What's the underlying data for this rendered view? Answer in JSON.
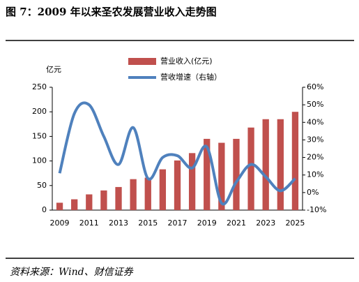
{
  "title": "图 7：2009 年以来圣农发展营业收入走势图",
  "source": "资料来源：Wind、财信证券",
  "chart_data": {
    "type": "bar-line",
    "y_label": "亿元",
    "categories": [
      "2009",
      null,
      "2011",
      null,
      "2013",
      null,
      "2015",
      null,
      "2017",
      null,
      "2019",
      null,
      "2021",
      null,
      "2023",
      null,
      "2025"
    ],
    "series": [
      {
        "name": "营业收入(亿元)",
        "type": "bar",
        "color": "#c0504d",
        "values": [
          15,
          22,
          32,
          40,
          47,
          63,
          66,
          83,
          101,
          116,
          145,
          137,
          145,
          168,
          185,
          185,
          200
        ]
      },
      {
        "name": "营收增速（右轴）",
        "type": "line",
        "axis": "y2",
        "color": "#4f81bd",
        "values": [
          11,
          45,
          50,
          32,
          16,
          37,
          8,
          20,
          21,
          14,
          26,
          -6,
          6,
          16,
          9,
          1,
          8
        ]
      }
    ],
    "ylim": [
      0,
      250
    ],
    "yticks": [
      0,
      50,
      100,
      150,
      200,
      250
    ],
    "y2lim": [
      -10,
      60
    ],
    "y2ticks": [
      {
        "value": -10,
        "label": "-10%"
      },
      {
        "value": 0,
        "label": "0%"
      },
      {
        "value": 10,
        "label": "10%"
      },
      {
        "value": 20,
        "label": "20%"
      },
      {
        "value": 30,
        "label": "30%"
      },
      {
        "value": 40,
        "label": "40%"
      },
      {
        "value": 50,
        "label": "50%"
      },
      {
        "value": 60,
        "label": "60%"
      }
    ]
  }
}
